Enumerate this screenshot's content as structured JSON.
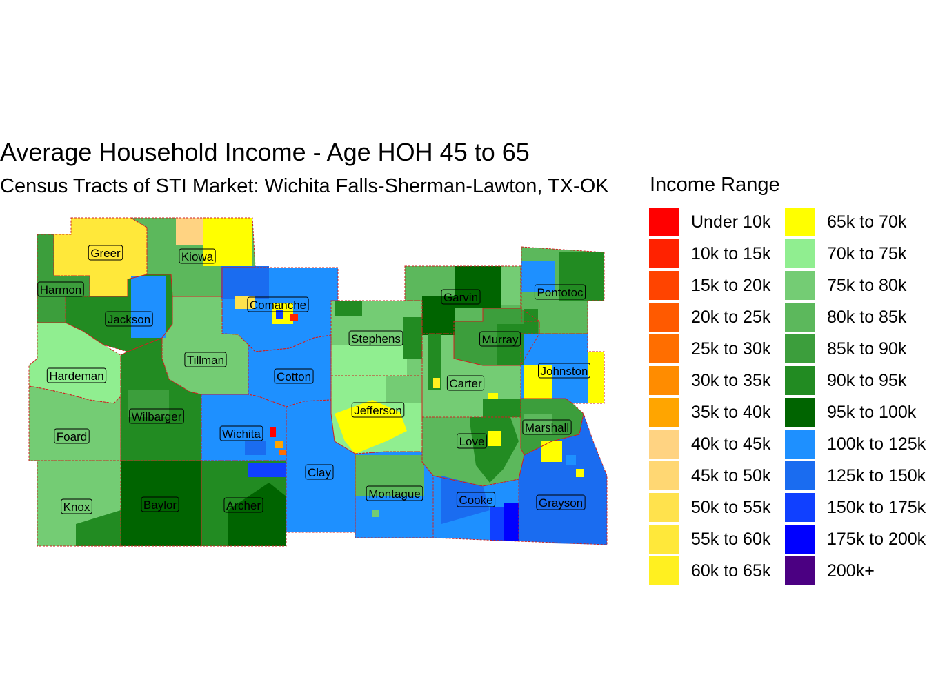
{
  "title": "Average Household Income - Age HOH 45 to 65",
  "subtitle": "Census Tracts of STI Market: Wichita Falls-Sherman-Lawton, TX-OK",
  "legend": {
    "title": "Income Range",
    "items": [
      {
        "label": "Under 10k",
        "color": "#FF0000"
      },
      {
        "label": "10k to 15k",
        "color": "#FF2200"
      },
      {
        "label": "15k to 20k",
        "color": "#FF4400"
      },
      {
        "label": "20k to 25k",
        "color": "#FF5A00"
      },
      {
        "label": "25k to 30k",
        "color": "#FF6E00"
      },
      {
        "label": "30k to 35k",
        "color": "#FF8C00"
      },
      {
        "label": "35k to 40k",
        "color": "#FFA500"
      },
      {
        "label": "40k to 45k",
        "color": "#FFD382"
      },
      {
        "label": "45k to 50k",
        "color": "#FFD773"
      },
      {
        "label": "50k to 55k",
        "color": "#FFE24D"
      },
      {
        "label": "55k to 60k",
        "color": "#FFE83A"
      },
      {
        "label": "60k to 65k",
        "color": "#FFF020"
      },
      {
        "label": "65k to 70k",
        "color": "#FFFF00"
      },
      {
        "label": "70k to 75k",
        "color": "#90EE90"
      },
      {
        "label": "75k to 80k",
        "color": "#74CC74"
      },
      {
        "label": "80k to 85k",
        "color": "#5CB85C"
      },
      {
        "label": "85k to 90k",
        "color": "#3C9E3C"
      },
      {
        "label": "90k to 95k",
        "color": "#228B22"
      },
      {
        "label": "95k to 100k",
        "color": "#006400"
      },
      {
        "label": "100k to 125k",
        "color": "#1E90FF"
      },
      {
        "label": "125k to 150k",
        "color": "#1A6CF0"
      },
      {
        "label": "150k to 175k",
        "color": "#1040FF"
      },
      {
        "label": "175k to 200k",
        "color": "#0000FF"
      },
      {
        "label": "200k+",
        "color": "#4B0082"
      }
    ]
  },
  "counties": [
    {
      "name": "Greer",
      "color": "#FFE83A"
    },
    {
      "name": "Kiowa",
      "color": "#5CB85C"
    },
    {
      "name": "Harmon",
      "color": "#3C9E3C"
    },
    {
      "name": "Jackson",
      "color": "#228B22"
    },
    {
      "name": "Comanche",
      "color": "#1E90FF"
    },
    {
      "name": "Garvin",
      "color": "#5CB85C"
    },
    {
      "name": "Pontotoc",
      "color": "#5CB85C"
    },
    {
      "name": "Stephens",
      "color": "#74CC74"
    },
    {
      "name": "Murray",
      "color": "#3C9E3C"
    },
    {
      "name": "Johnston",
      "color": "#1E90FF"
    },
    {
      "name": "Tillman",
      "color": "#74CC74"
    },
    {
      "name": "Hardeman",
      "color": "#90EE90"
    },
    {
      "name": "Cotton",
      "color": "#1E90FF"
    },
    {
      "name": "Carter",
      "color": "#74CC74"
    },
    {
      "name": "Jefferson",
      "color": "#90EE90"
    },
    {
      "name": "Wilbarger",
      "color": "#228B22"
    },
    {
      "name": "Foard",
      "color": "#74CC74"
    },
    {
      "name": "Wichita",
      "color": "#1E90FF"
    },
    {
      "name": "Marshall",
      "color": "#3C9E3C"
    },
    {
      "name": "Love",
      "color": "#5CB85C"
    },
    {
      "name": "Clay",
      "color": "#1E90FF"
    },
    {
      "name": "Montague",
      "color": "#1E90FF"
    },
    {
      "name": "Knox",
      "color": "#74CC74"
    },
    {
      "name": "Baylor",
      "color": "#006400"
    },
    {
      "name": "Archer",
      "color": "#228B22"
    },
    {
      "name": "Cooke",
      "color": "#1E90FF"
    },
    {
      "name": "Grayson",
      "color": "#1A6CF0"
    }
  ]
}
